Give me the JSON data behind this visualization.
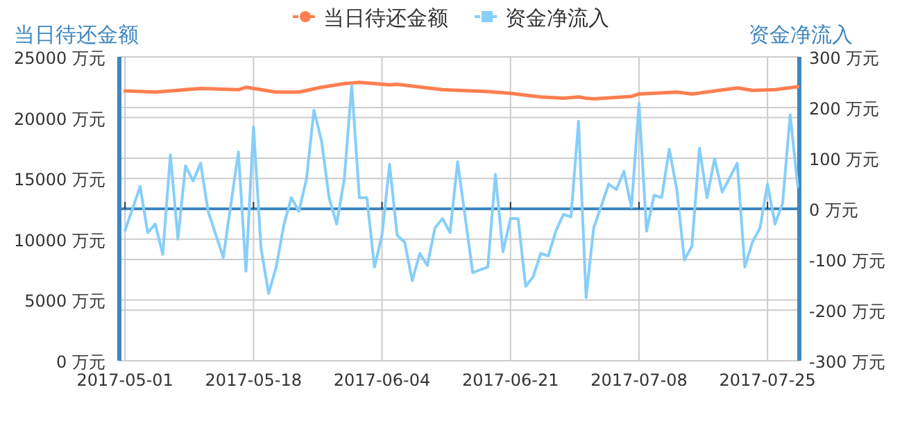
{
  "chart_data": {
    "type": "line",
    "ylabel": "当日待还金额",
    "y2label": "资金净流入",
    "xlim": [
      "2017-04-30T06:00",
      "2017-07-29T05:00"
    ],
    "xticks": [
      {
        "value": "2017-05-01",
        "label": "2017-05-01"
      },
      {
        "value": "2017-05-18",
        "label": "2017-05-18"
      },
      {
        "value": "2017-06-04",
        "label": "2017-06-04"
      },
      {
        "value": "2017-06-21",
        "label": "2017-06-21"
      },
      {
        "value": "2017-07-08",
        "label": "2017-07-08"
      },
      {
        "value": "2017-07-25",
        "label": "2017-07-25"
      }
    ],
    "ylim": [
      0,
      25000
    ],
    "yticks": [
      {
        "value": 0,
        "label": "0 万元"
      },
      {
        "value": 5000,
        "label": "5000 万元"
      },
      {
        "value": 10000,
        "label": "10000 万元"
      },
      {
        "value": 15000,
        "label": "15000 万元"
      },
      {
        "value": 20000,
        "label": "20000 万元"
      },
      {
        "value": 25000,
        "label": "25000 万元"
      }
    ],
    "y2lim": [
      -300,
      300
    ],
    "y2ticks": [
      {
        "value": -300,
        "label": "-300 万元"
      },
      {
        "value": -200,
        "label": "-200 万元"
      },
      {
        "value": -100,
        "label": "-100 万元"
      },
      {
        "value": 0,
        "label": "0 万元"
      },
      {
        "value": 100,
        "label": "100 万元"
      },
      {
        "value": 200,
        "label": "200 万元"
      },
      {
        "value": 300,
        "label": "300 万元"
      }
    ],
    "grid": true,
    "legend": "top",
    "line_style": "solid",
    "ref_lines": [
      {
        "axis": "y2",
        "value": 0,
        "color": "#3f86bf"
      }
    ],
    "series": [
      {
        "name": "当日待还金额",
        "color": "#ff7f50",
        "x": [
          "2017-05-01",
          "2017-05-05",
          "2017-05-11",
          "2017-05-16",
          "2017-05-17",
          "2017-05-21",
          "2017-05-24",
          "2017-05-27",
          "2017-05-30",
          "2017-06-01",
          "2017-06-05",
          "2017-06-06",
          "2017-06-12",
          "2017-06-18",
          "2017-06-21",
          "2017-06-25",
          "2017-06-28",
          "2017-06-30",
          "2017-07-01",
          "2017-07-02",
          "2017-07-07",
          "2017-07-08",
          "2017-07-13",
          "2017-07-15",
          "2017-07-21",
          "2017-07-23",
          "2017-07-26",
          "2017-07-29"
        ],
        "values": [
          22200,
          22100,
          22400,
          22300,
          22500,
          22100,
          22100,
          22500,
          22800,
          22900,
          22700,
          22750,
          22300,
          22150,
          22000,
          21700,
          21600,
          21700,
          21600,
          21550,
          21750,
          21950,
          22100,
          21950,
          22450,
          22250,
          22300,
          22550
        ]
      },
      {
        "name": "资金净流入",
        "color": "#87cefa",
        "axis": "y2",
        "x": [
          "2017-05-01",
          "2017-05-03",
          "2017-05-04",
          "2017-05-05",
          "2017-05-06",
          "2017-05-07",
          "2017-05-08",
          "2017-05-09",
          "2017-05-10",
          "2017-05-11",
          "2017-05-12",
          "2017-05-14",
          "2017-05-16",
          "2017-05-17",
          "2017-05-18",
          "2017-05-19",
          "2017-05-20",
          "2017-05-21",
          "2017-05-22",
          "2017-05-23",
          "2017-05-24",
          "2017-05-25",
          "2017-05-26",
          "2017-05-27",
          "2017-05-28",
          "2017-05-29",
          "2017-05-30",
          "2017-05-31",
          "2017-06-01",
          "2017-06-02",
          "2017-06-03",
          "2017-06-04",
          "2017-06-05",
          "2017-06-06",
          "2017-06-07",
          "2017-06-08",
          "2017-06-09",
          "2017-06-10",
          "2017-06-11",
          "2017-06-12",
          "2017-06-13",
          "2017-06-14",
          "2017-06-16",
          "2017-06-18",
          "2017-06-19",
          "2017-06-20",
          "2017-06-21",
          "2017-06-22",
          "2017-06-23",
          "2017-06-24",
          "2017-06-25",
          "2017-06-26",
          "2017-06-27",
          "2017-06-28",
          "2017-06-29",
          "2017-06-30",
          "2017-07-01",
          "2017-07-02",
          "2017-07-04",
          "2017-07-05",
          "2017-07-06",
          "2017-07-07",
          "2017-07-08",
          "2017-07-09",
          "2017-07-10",
          "2017-07-11",
          "2017-07-12",
          "2017-07-13",
          "2017-07-14",
          "2017-07-15",
          "2017-07-16",
          "2017-07-17",
          "2017-07-18",
          "2017-07-19",
          "2017-07-21",
          "2017-07-22",
          "2017-07-23",
          "2017-07-24",
          "2017-07-25",
          "2017-07-26",
          "2017-07-27",
          "2017-07-28",
          "2017-07-29"
        ],
        "values": [
          -43,
          44,
          -47,
          -30,
          -90,
          107,
          -60,
          85,
          55,
          90,
          -5,
          -96,
          112,
          -123,
          162,
          -79,
          -167,
          -115,
          -33,
          22,
          -5,
          58,
          195,
          134,
          22,
          -30,
          58,
          244,
          22,
          22,
          -115,
          -52,
          88,
          -52,
          -66,
          -142,
          -88,
          -112,
          -38,
          -19,
          -47,
          93,
          -126,
          -115,
          68,
          -85,
          -19,
          -19,
          -153,
          -134,
          -88,
          -93,
          -44,
          -11,
          -16,
          173,
          -175,
          -38,
          49,
          38,
          74,
          3,
          208,
          -44,
          27,
          22,
          118,
          38,
          -101,
          -74,
          120,
          22,
          99,
          33,
          90,
          -115,
          -66,
          -38,
          49,
          -30,
          11,
          186,
          44
        ]
      }
    ]
  }
}
